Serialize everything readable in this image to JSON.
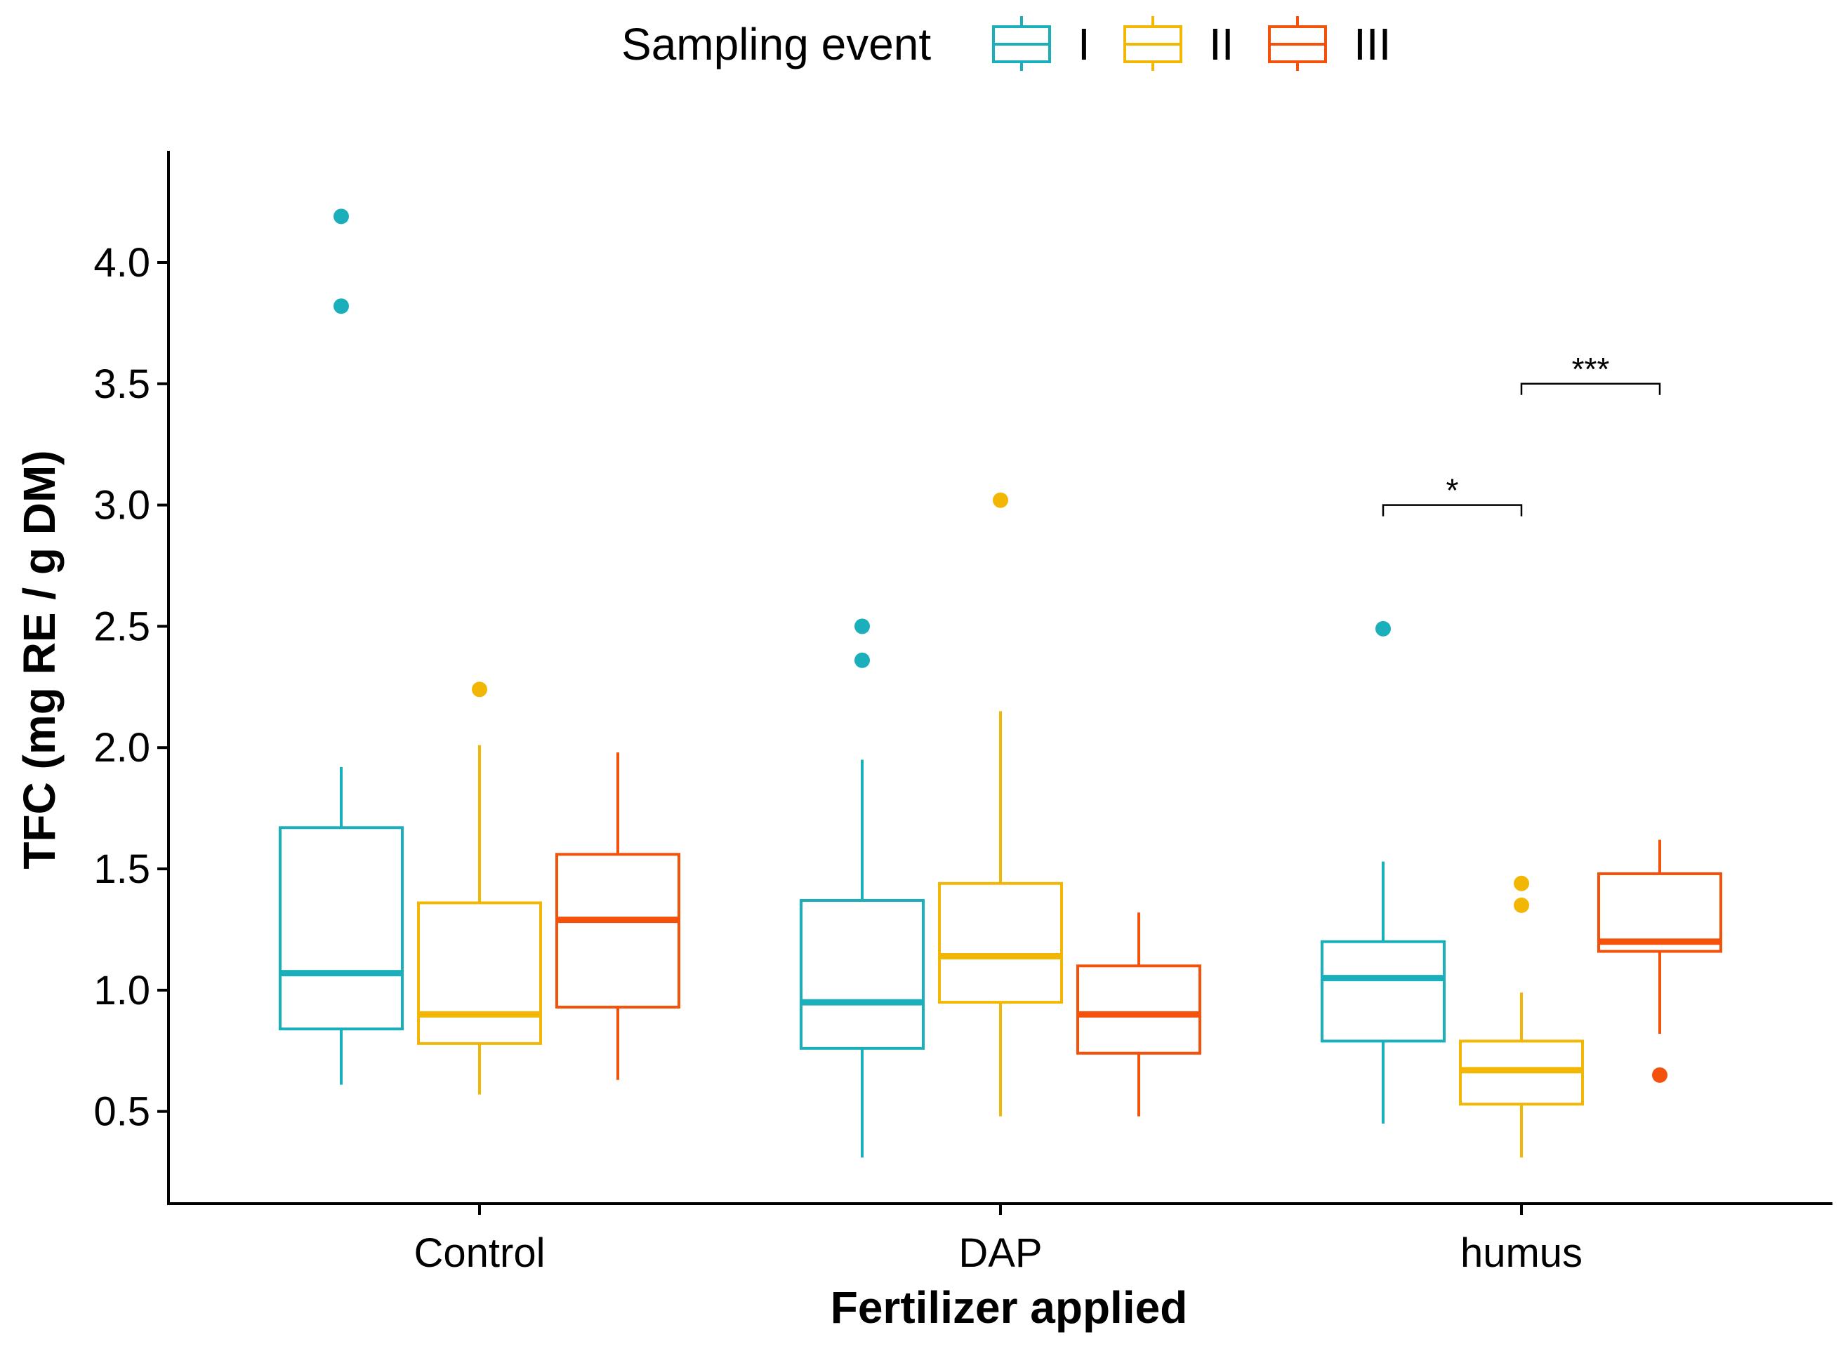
{
  "chart_data": {
    "type": "boxplot",
    "title": "",
    "xlabel": "Fertilizer applied",
    "ylabel": "TFC (mg RE / g DM)",
    "ylim": [
      0.12,
      4.46
    ],
    "yticks": [
      "0.5",
      "1.0",
      "1.5",
      "2.0",
      "2.5",
      "3.0",
      "3.5",
      "4.0"
    ],
    "categories": [
      "Control",
      "DAP",
      "humus"
    ],
    "legend": {
      "title": "Sampling event",
      "position": "top-center",
      "entries": [
        "I",
        "II",
        "III"
      ]
    },
    "series": [
      {
        "name": "I",
        "color": "#1AAFBB",
        "boxes": [
          {
            "category": "Control",
            "low": 0.61,
            "q1": 0.84,
            "median": 1.07,
            "q3": 1.67,
            "high": 1.92,
            "outliers": [
              3.82,
              4.19
            ]
          },
          {
            "category": "DAP",
            "low": 0.31,
            "q1": 0.76,
            "median": 0.95,
            "q3": 1.37,
            "high": 1.95,
            "outliers": [
              2.36,
              2.5
            ]
          },
          {
            "category": "humus",
            "low": 0.45,
            "q1": 0.79,
            "median": 1.05,
            "q3": 1.2,
            "high": 1.53,
            "outliers": [
              2.49
            ]
          }
        ]
      },
      {
        "name": "II",
        "color": "#F2B705",
        "boxes": [
          {
            "category": "Control",
            "low": 0.57,
            "q1": 0.78,
            "median": 0.9,
            "q3": 1.36,
            "high": 2.01,
            "outliers": [
              2.24
            ]
          },
          {
            "category": "DAP",
            "low": 0.48,
            "q1": 0.95,
            "median": 1.14,
            "q3": 1.44,
            "high": 2.15,
            "outliers": [
              3.02
            ]
          },
          {
            "category": "humus",
            "low": 0.31,
            "q1": 0.53,
            "median": 0.67,
            "q3": 0.79,
            "high": 0.99,
            "outliers": [
              1.35,
              1.44
            ]
          }
        ]
      },
      {
        "name": "III",
        "color": "#F4510B",
        "boxes": [
          {
            "category": "Control",
            "low": 0.63,
            "q1": 0.93,
            "median": 1.29,
            "q3": 1.56,
            "high": 1.98,
            "outliers": []
          },
          {
            "category": "DAP",
            "low": 0.48,
            "q1": 0.74,
            "median": 0.9,
            "q3": 1.1,
            "high": 1.32,
            "outliers": []
          },
          {
            "category": "humus",
            "low": 0.82,
            "q1": 1.16,
            "median": 1.2,
            "q3": 1.48,
            "high": 1.62,
            "outliers": [
              0.65
            ]
          }
        ]
      }
    ],
    "annotations": [
      {
        "label": "*",
        "category": "humus",
        "from": "I",
        "to": "II",
        "y": 3.0
      },
      {
        "label": "***",
        "category": "humus",
        "from": "II",
        "to": "III",
        "y": 3.5
      }
    ]
  }
}
